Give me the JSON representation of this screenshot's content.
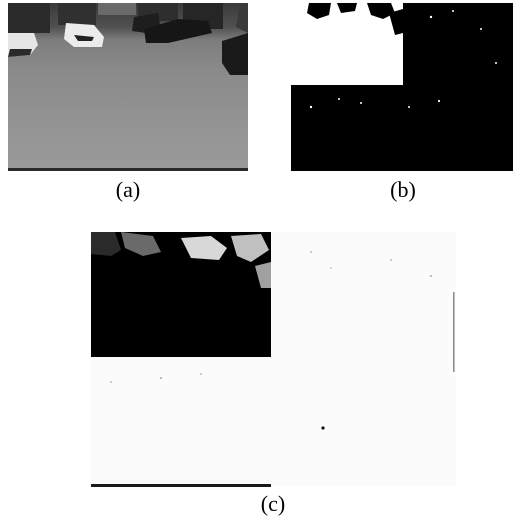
{
  "captions": {
    "a": "(a)",
    "b": "(b)",
    "c": "(c)"
  },
  "colors": {
    "background": "#ffffff",
    "mask_black": "#000000",
    "mask_white": "#ffffff",
    "floor_gray": "#8c8c8c"
  }
}
